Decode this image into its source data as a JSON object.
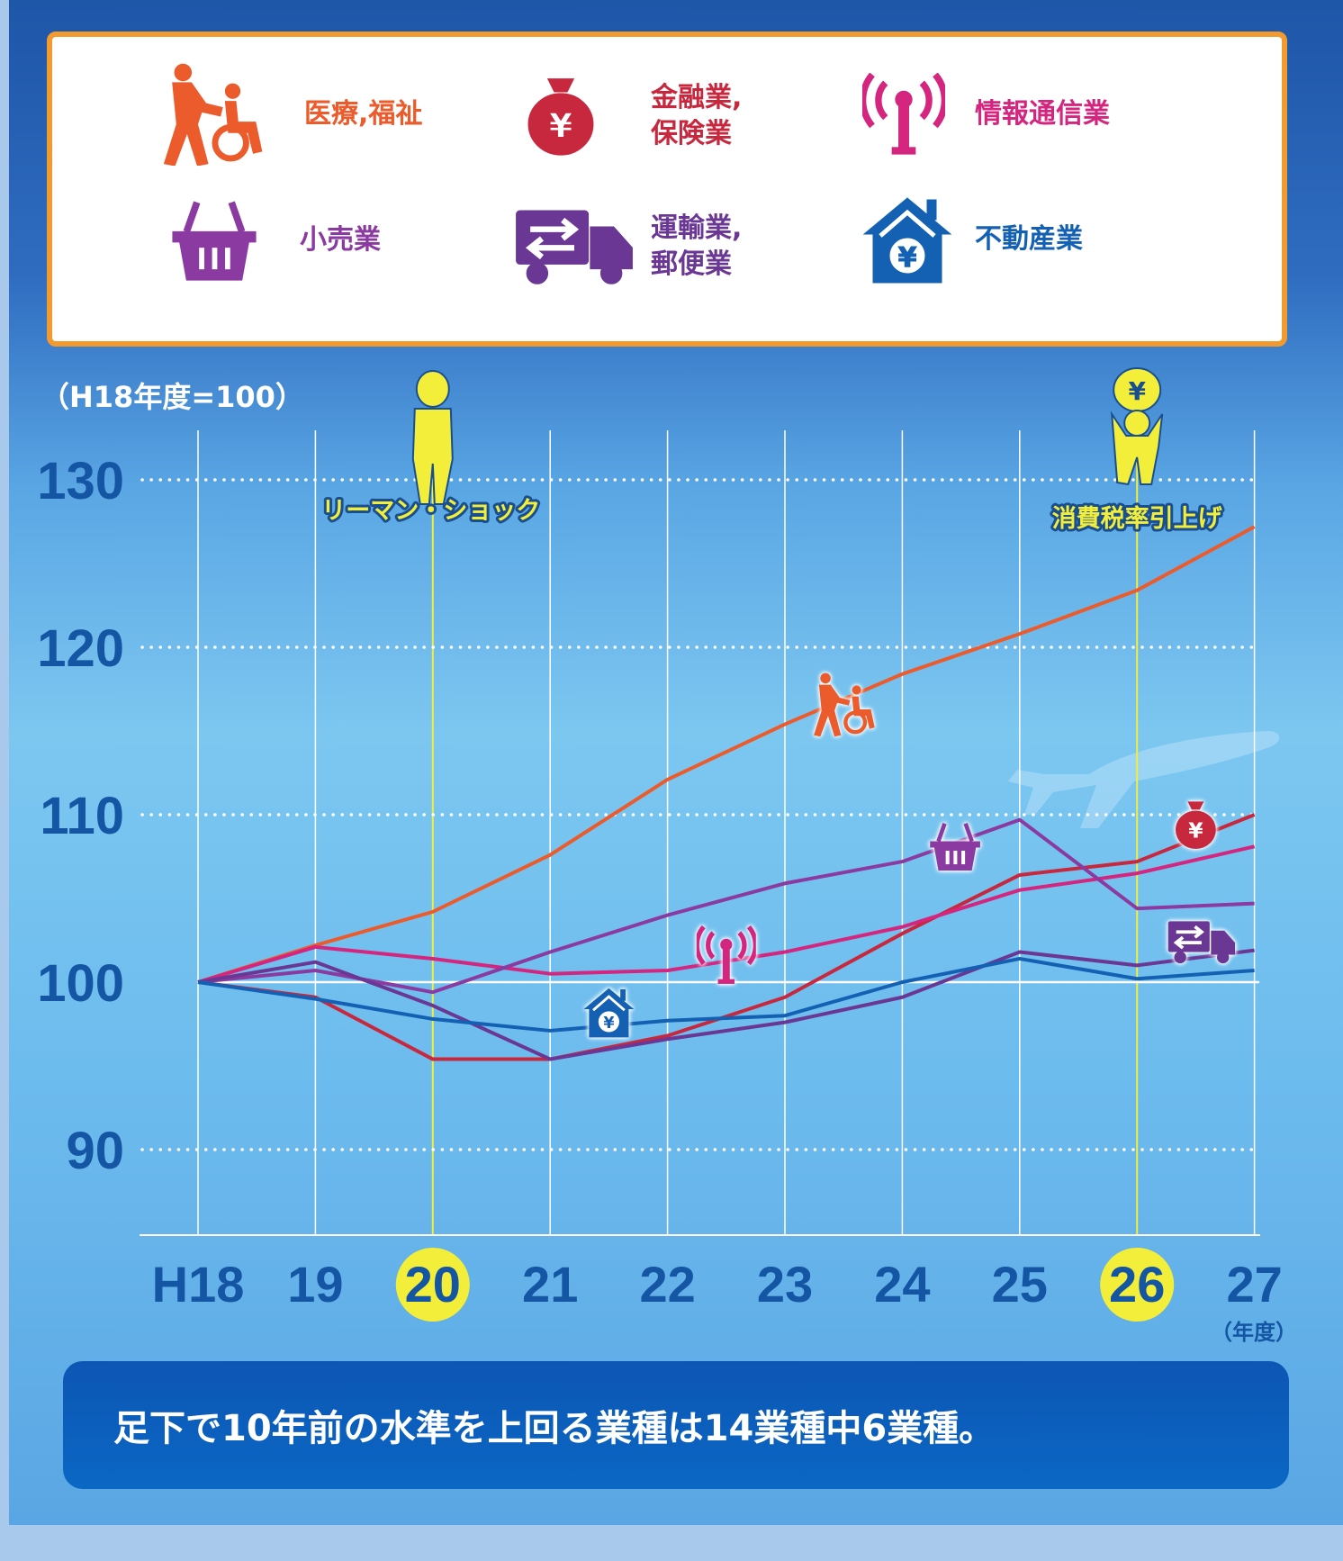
{
  "legend": [
    {
      "label": "医療,福祉",
      "color": "#ec5b2b",
      "icon": "caregiver-wheelchair-icon"
    },
    {
      "label": "金融業,\n保険業",
      "color": "#c8283e",
      "icon": "yen-money-bag-icon"
    },
    {
      "label": "情報通信業",
      "color": "#d4257f",
      "icon": "antenna-icon"
    },
    {
      "label": "小売業",
      "color": "#8a3aa0",
      "icon": "shopping-basket-icon"
    },
    {
      "label": "運輸業,\n郵便業",
      "color": "#6a3794",
      "icon": "delivery-truck-icon"
    },
    {
      "label": "不動産業",
      "color": "#1461b4",
      "icon": "yen-house-icon"
    }
  ],
  "annotations": {
    "index_note": "（H18年度=100）",
    "lehman_label": "リーマン・ショック",
    "tax_label": "消費税率引上げ",
    "year_unit": "（年度）"
  },
  "summary": "足下で10年前の水準を上回る業種は14業種中6業種。",
  "chart_data": {
    "type": "line",
    "x": [
      "H18",
      "19",
      "20",
      "21",
      "22",
      "23",
      "24",
      "25",
      "26",
      "27"
    ],
    "yticks": [
      90,
      100,
      110,
      120,
      130
    ],
    "ylim": [
      85,
      133
    ],
    "highlight_x": [
      "20",
      "26"
    ],
    "series": [
      {
        "name": "医療,福祉",
        "color": "#ec5b2b",
        "values": [
          100,
          102.2,
          104.2,
          107.6,
          112.1,
          115.4,
          118.4,
          120.8,
          123.4,
          127.2
        ]
      },
      {
        "name": "金融業,保険業",
        "color": "#c8283e",
        "values": [
          100,
          99.1,
          95.4,
          95.4,
          96.8,
          99.1,
          102.9,
          106.4,
          107.2,
          110.0
        ]
      },
      {
        "name": "情報通信業",
        "color": "#d4257f",
        "values": [
          100,
          102.1,
          101.4,
          100.5,
          100.7,
          101.8,
          103.3,
          105.5,
          106.5,
          108.1
        ]
      },
      {
        "name": "小売業",
        "color": "#8a3aa0",
        "values": [
          100,
          100.7,
          99.4,
          101.8,
          104.0,
          105.9,
          107.2,
          109.7,
          104.4,
          104.7
        ]
      },
      {
        "name": "運輸業,郵便業",
        "color": "#6a3794",
        "values": [
          100,
          101.2,
          98.6,
          95.4,
          96.6,
          97.6,
          99.1,
          101.8,
          101.0,
          101.9
        ]
      },
      {
        "name": "不動産業",
        "color": "#1461b4",
        "values": [
          100,
          99.0,
          97.8,
          97.1,
          97.7,
          98.0,
          100.0,
          101.4,
          100.2,
          100.7
        ]
      }
    ],
    "markers": [
      {
        "series": "医療,福祉",
        "icon": "caregiver-wheelchair-icon",
        "x": 23.5,
        "y": 116.6
      },
      {
        "series": "金融業,保険業",
        "icon": "yen-money-bag-icon",
        "x": 26.5,
        "y": 109.4
      },
      {
        "series": "情報通信業",
        "icon": "antenna-icon",
        "x": 22.5,
        "y": 101.6
      },
      {
        "series": "小売業",
        "icon": "shopping-basket-icon",
        "x": 24.45,
        "y": 108.1
      },
      {
        "series": "運輸業,郵便業",
        "icon": "delivery-truck-icon",
        "x": 26.55,
        "y": 102.4
      },
      {
        "series": "不動産業",
        "icon": "yen-house-icon",
        "x": 21.5,
        "y": 98.2
      }
    ]
  }
}
